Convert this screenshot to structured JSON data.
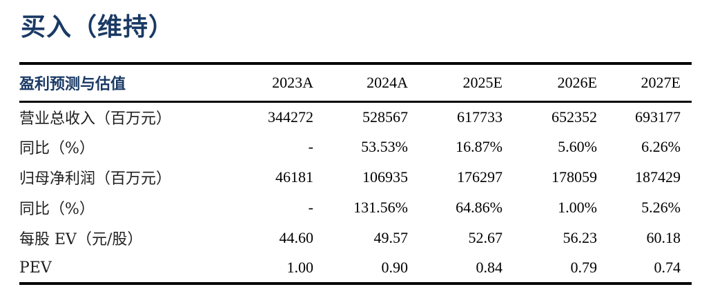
{
  "title": "买入（维持）",
  "colors": {
    "accent_navy": "#1a3a64",
    "rule_black": "#000000",
    "text_black": "#111111"
  },
  "table": {
    "header_label": "盈利预测与估值",
    "columns": [
      "2023A",
      "2024A",
      "2025E",
      "2026E",
      "2027E"
    ],
    "rows": [
      {
        "label": "营业总收入（百万元）",
        "values": [
          "344272",
          "528567",
          "617733",
          "652352",
          "693177"
        ]
      },
      {
        "label": "同比（%）",
        "values": [
          "-",
          "53.53%",
          "16.87%",
          "5.60%",
          "6.26%"
        ]
      },
      {
        "label": "归母净利润（百万元）",
        "values": [
          "46181",
          "106935",
          "176297",
          "178059",
          "187429"
        ]
      },
      {
        "label": "同比（%）",
        "values": [
          "-",
          "131.56%",
          "64.86%",
          "1.00%",
          "5.26%"
        ]
      },
      {
        "label": "每股 EV（元/股）",
        "values": [
          "44.60",
          "49.57",
          "52.67",
          "56.23",
          "60.18"
        ]
      },
      {
        "label": "PEV",
        "values": [
          "1.00",
          "0.90",
          "0.84",
          "0.79",
          "0.74"
        ]
      }
    ]
  }
}
